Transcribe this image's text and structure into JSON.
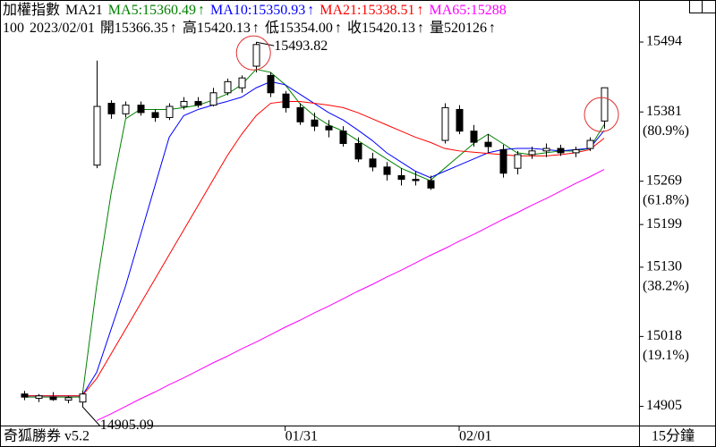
{
  "chart_data": {
    "type": "candlestick",
    "header": {
      "line1": [
        {
          "text": "加權指數",
          "color": "#000000"
        },
        {
          "text": "MA21",
          "color": "#000000"
        },
        {
          "text": "MA5:15360.49",
          "arrow": "↑",
          "color": "#008000"
        },
        {
          "text": "MA10:15350.93",
          "arrow": "↑",
          "color": "#0000ff"
        },
        {
          "text": "MA21:15338.51",
          "arrow": "↑",
          "color": "#ff0000"
        },
        {
          "text": "MA65:15288",
          "color": "#ff00ff"
        }
      ],
      "line2": [
        {
          "text": "100"
        },
        {
          "text": "2023/02/01"
        },
        {
          "text": "開15366.35",
          "arrow": "↑"
        },
        {
          "text": "高15420.13",
          "arrow": "↑"
        },
        {
          "text": "低15354.00",
          "arrow": "↑"
        },
        {
          "text": "收15420.13",
          "arrow": "↑"
        },
        {
          "text": "量520126",
          "arrow": "↑"
        }
      ]
    },
    "high_label": "15493.82",
    "low_label": "14905.09",
    "footer_left": "奇狐勝券 v5.2",
    "period": "15分鐘",
    "categories": [
      null,
      null,
      null,
      null,
      null,
      null,
      null,
      null,
      null,
      null,
      null,
      null,
      null,
      null,
      null,
      null,
      null,
      null,
      "01/31",
      null,
      null,
      null,
      null,
      null,
      null,
      null,
      null,
      null,
      null,
      null,
      "02/01",
      null,
      null,
      null,
      null,
      null,
      null,
      null,
      null,
      null,
      null
    ],
    "candles": {
      "open": [
        14925,
        14918,
        14920,
        14915,
        14912,
        15295,
        15395,
        15378,
        15392,
        15380,
        15372,
        15390,
        15398,
        15392,
        15412,
        15420,
        15455,
        15440,
        15410,
        15388,
        15368,
        15358,
        15350,
        15330,
        15305,
        15292,
        15278,
        15272,
        15270,
        15335,
        15385,
        15350,
        15332,
        15320,
        15290,
        15312,
        15318,
        15322,
        15315,
        15322,
        15366.35
      ],
      "high": [
        14930,
        14925,
        14928,
        14922,
        14930,
        15464,
        15400,
        15398,
        15398,
        15385,
        15395,
        15405,
        15405,
        15420,
        15435,
        15440,
        15493.82,
        15445,
        15415,
        15395,
        15380,
        15368,
        15358,
        15340,
        15315,
        15300,
        15290,
        15285,
        15278,
        15395,
        15392,
        15360,
        15345,
        15328,
        15318,
        15325,
        15330,
        15328,
        15325,
        15340,
        15420.13
      ],
      "low": [
        14915,
        14912,
        14914,
        14910,
        14905.09,
        15290,
        15370,
        15372,
        15375,
        15365,
        15368,
        15385,
        15388,
        15390,
        15408,
        15412,
        15445,
        15405,
        15380,
        15360,
        15350,
        15340,
        15325,
        15300,
        15285,
        15270,
        15262,
        15262,
        15255,
        15330,
        15345,
        15325,
        15315,
        15275,
        15280,
        15305,
        15308,
        15310,
        15308,
        15318,
        15354
      ],
      "close": [
        14920,
        14922,
        14916,
        14919,
        14925,
        15390,
        15378,
        15392,
        15380,
        15372,
        15390,
        15398,
        15392,
        15412,
        15430,
        15436,
        15490,
        15412,
        15388,
        15365,
        15358,
        15352,
        15330,
        15305,
        15292,
        15280,
        15272,
        15270,
        15258,
        15388,
        15350,
        15332,
        15325,
        15282,
        15312,
        15318,
        15322,
        15315,
        15320,
        15335,
        15420.13
      ]
    },
    "series": [
      {
        "name": "MA5",
        "color": "#008000",
        "values": [
          14920,
          14920,
          14920,
          14920,
          14920,
          15100,
          15250,
          15370,
          15385,
          15385,
          15385,
          15388,
          15392,
          15400,
          15410,
          15425,
          15450,
          15445,
          15425,
          15395,
          15375,
          15360,
          15350,
          15335,
          15320,
          15305,
          15290,
          15280,
          15270,
          15290,
          15310,
          15330,
          15345,
          15330,
          15315,
          15312,
          15315,
          15318,
          15318,
          15322,
          15360.49
        ]
      },
      {
        "name": "MA10",
        "color": "#0000ff",
        "values": [
          14922,
          14922,
          14922,
          14922,
          14922,
          14960,
          15030,
          15100,
          15180,
          15260,
          15340,
          15375,
          15385,
          15392,
          15398,
          15405,
          15420,
          15430,
          15425,
          15410,
          15395,
          15380,
          15368,
          15352,
          15335,
          15315,
          15300,
          15285,
          15275,
          15285,
          15295,
          15305,
          15315,
          15320,
          15322,
          15322,
          15320,
          15318,
          15320,
          15322,
          15350.93
        ]
      },
      {
        "name": "MA21",
        "color": "#ff0000",
        "values": [
          14922,
          14922,
          14922,
          14922,
          14922,
          14950,
          14990,
          15030,
          15070,
          15110,
          15150,
          15190,
          15230,
          15270,
          15310,
          15345,
          15375,
          15395,
          15398,
          15398,
          15395,
          15392,
          15388,
          15380,
          15370,
          15360,
          15350,
          15340,
          15332,
          15322,
          15318,
          15316,
          15314,
          15312,
          15310,
          15310,
          15310,
          15312,
          15315,
          15320,
          15338.51
        ]
      },
      {
        "name": "MA65",
        "color": "#ff00ff",
        "values": [
          null,
          null,
          null,
          null,
          null,
          14882,
          14893,
          14905,
          14917,
          14928,
          14940,
          14951,
          14963,
          14975,
          14986,
          14998,
          15009,
          15021,
          15033,
          15044,
          15056,
          15067,
          15079,
          15091,
          15102,
          15114,
          15125,
          15137,
          15149,
          15160,
          15172,
          15183,
          15195,
          15207,
          15218,
          15230,
          15241,
          15253,
          15265,
          15276,
          15288
        ]
      }
    ],
    "ylim": [
      14874,
      15562
    ],
    "yticks": [
      15494,
      15381,
      15269,
      15199,
      15130,
      15018,
      14905
    ],
    "fib_labels": [
      {
        "value": 15381,
        "label": "(80.9%)"
      },
      {
        "value": 15269,
        "label": "(61.8%)"
      },
      {
        "value": 15130,
        "label": "(38.2%)"
      },
      {
        "value": 15018,
        "label": "(19.1%)"
      }
    ],
    "up_color": "#ffffff",
    "down_color": "#000000",
    "highlight_color": "#e03030"
  }
}
